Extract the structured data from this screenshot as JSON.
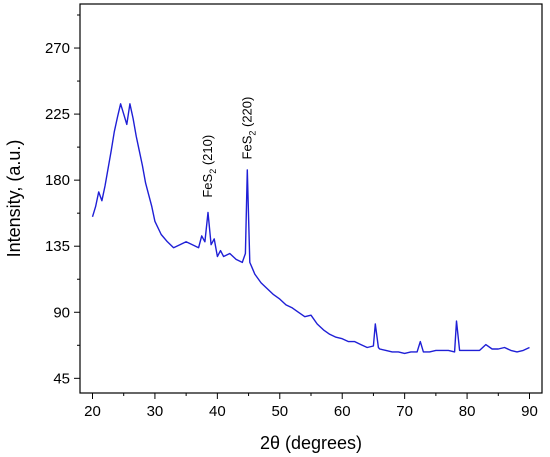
{
  "chart_data": {
    "type": "line",
    "xlabel": "2θ (degrees)",
    "ylabel": "Intensity, (a.u.)",
    "xlim": [
      18,
      92
    ],
    "ylim": [
      35,
      300
    ],
    "xticks": [
      20,
      30,
      40,
      50,
      60,
      70,
      80,
      90
    ],
    "yticks": [
      45,
      90,
      135,
      180,
      225,
      270
    ],
    "grid": false,
    "line_color": "#1f1fd6",
    "annotations": [
      {
        "base": "FeS",
        "sub": "2",
        "hkl": " (210)",
        "x": 38.5,
        "y": 164
      },
      {
        "base": "FeS",
        "sub": "2",
        "hkl": " (220)",
        "x": 44.8,
        "y": 190
      }
    ],
    "series": [
      {
        "x": [
          20,
          20.5,
          21,
          21.5,
          22,
          22.5,
          23,
          23.5,
          24,
          24.5,
          25,
          25.5,
          26,
          26.5,
          27,
          27.5,
          28,
          28.5,
          29,
          29.5,
          30,
          31,
          32,
          33,
          34,
          35,
          36,
          37,
          37.5,
          38,
          38.5,
          39,
          39.5,
          40,
          40.5,
          41,
          42,
          43,
          44,
          44.5,
          44.8,
          45.2,
          45.6,
          46,
          47,
          48,
          49,
          50,
          51,
          52,
          53,
          54,
          55,
          56,
          57,
          58,
          59,
          60,
          61,
          62,
          63,
          64,
          65,
          65.3,
          65.8,
          66,
          67,
          68,
          69,
          70,
          71,
          72,
          72.5,
          73,
          74,
          75,
          76,
          77,
          78,
          78.3,
          78.8,
          79,
          80,
          81,
          82,
          83,
          84,
          85,
          86,
          87,
          88,
          89,
          90
        ],
        "y": [
          155,
          162,
          172,
          166,
          176,
          188,
          200,
          213,
          223,
          232,
          225,
          218,
          232,
          222,
          210,
          200,
          190,
          178,
          170,
          162,
          152,
          143,
          138,
          134,
          136,
          138,
          136,
          134,
          142,
          138,
          158,
          136,
          140,
          128,
          132,
          128,
          130,
          126,
          124,
          130,
          187,
          124,
          120,
          116,
          110,
          106,
          102,
          99,
          95,
          93,
          90,
          87,
          88,
          82,
          78,
          75,
          73,
          72,
          70,
          70,
          68,
          66,
          67,
          82,
          66,
          65,
          64,
          63,
          63,
          62,
          63,
          63,
          70,
          63,
          63,
          64,
          64,
          64,
          63,
          84,
          64,
          64,
          64,
          64,
          64,
          68,
          65,
          65,
          66,
          64,
          63,
          64,
          66
        ]
      }
    ]
  }
}
